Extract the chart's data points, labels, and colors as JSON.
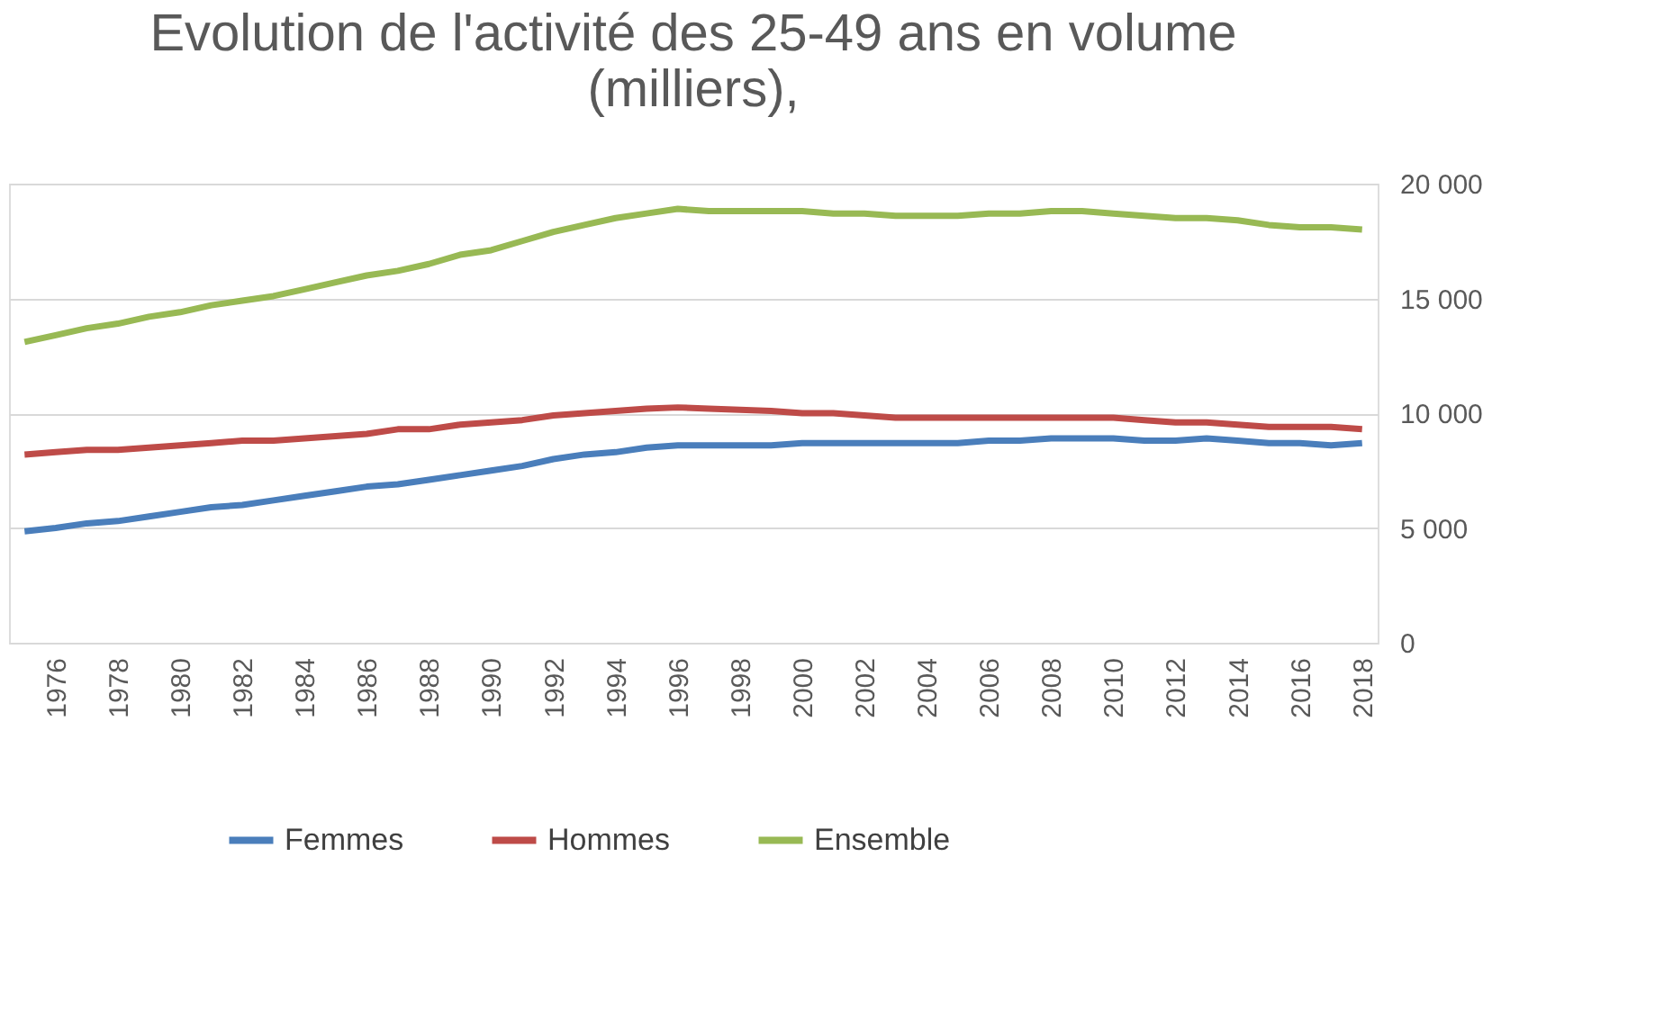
{
  "chart_data": {
    "type": "line",
    "title": "Evolution de l'activité  des 25-49 ans en volume\n(milliers),",
    "categories": [
      null,
      "1976",
      null,
      "1978",
      null,
      "1980",
      null,
      "1982",
      null,
      "1984",
      null,
      "1986",
      null,
      "1988",
      null,
      "1990",
      null,
      "1992",
      null,
      "1994",
      null,
      "1996",
      null,
      "1998",
      null,
      "2000",
      null,
      "2002",
      null,
      "2004",
      null,
      "2006",
      null,
      "2008",
      null,
      "2010",
      null,
      "2012",
      null,
      "2014",
      null,
      "2016",
      null,
      "2018"
    ],
    "series": [
      {
        "name": "Femmes",
        "color": "#4a7ebb",
        "values": [
          4850,
          5000,
          5200,
          5300,
          5500,
          5700,
          5900,
          6000,
          6200,
          6400,
          6600,
          6800,
          6900,
          7100,
          7300,
          7500,
          7700,
          8000,
          8200,
          8300,
          8500,
          8600,
          8600,
          8600,
          8600,
          8700,
          8700,
          8700,
          8700,
          8700,
          8700,
          8800,
          8800,
          8900,
          8900,
          8900,
          8800,
          8800,
          8900,
          8800,
          8700,
          8700,
          8600,
          8700
        ]
      },
      {
        "name": "Hommes",
        "color": "#be4b48",
        "values": [
          8200,
          8300,
          8400,
          8400,
          8500,
          8600,
          8700,
          8800,
          8800,
          8900,
          9000,
          9100,
          9300,
          9300,
          9500,
          9600,
          9700,
          9900,
          10000,
          10100,
          10200,
          10250,
          10200,
          10150,
          10100,
          10000,
          10000,
          9900,
          9800,
          9800,
          9800,
          9800,
          9800,
          9800,
          9800,
          9800,
          9700,
          9600,
          9600,
          9500,
          9400,
          9400,
          9400,
          9300
        ]
      },
      {
        "name": "Ensemble",
        "color": "#98b954",
        "values": [
          13100,
          13400,
          13700,
          13900,
          14200,
          14400,
          14700,
          14900,
          15100,
          15400,
          15700,
          16000,
          16200,
          16500,
          16900,
          17100,
          17500,
          17900,
          18200,
          18500,
          18700,
          18900,
          18800,
          18800,
          18800,
          18800,
          18700,
          18700,
          18600,
          18600,
          18600,
          18700,
          18700,
          18800,
          18800,
          18700,
          18600,
          18500,
          18500,
          18400,
          18200,
          18100,
          18100,
          18000
        ]
      }
    ],
    "ylim": [
      0,
      20000
    ],
    "yticks": [
      0,
      {
        "value": 5000,
        "label": "5 000"
      },
      {
        "value": 10000,
        "label": "10 000"
      },
      {
        "value": 15000,
        "label": "15 000"
      },
      {
        "value": 20000,
        "label": "20 000"
      }
    ],
    "grid": "y",
    "legend": "bottom",
    "marker": "none",
    "line_style": "solid"
  }
}
